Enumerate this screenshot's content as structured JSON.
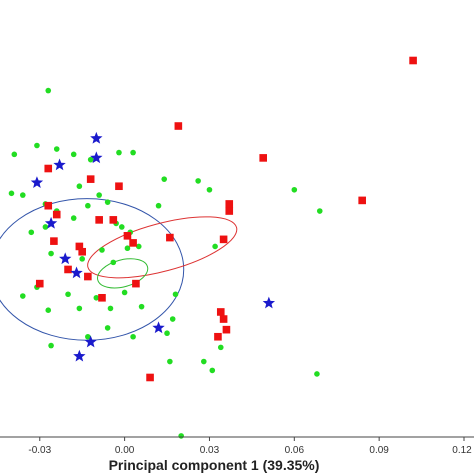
{
  "chart_data": {
    "type": "scatter",
    "xlabel": "Principal component 1 (39.35%)",
    "ylabel": "",
    "xlim": [
      -0.043,
      0.12
    ],
    "ylim": [
      -0.12,
      0.12
    ],
    "grid": false,
    "x_ticks": [
      "-0.03",
      "0.00",
      "0.03",
      "0.06",
      "0.09",
      "0.12"
    ],
    "x_tick_values": [
      -0.03,
      0.0,
      0.03,
      0.06,
      0.09,
      0.12
    ],
    "colors": {
      "green": "#22dd22",
      "red": "#ee1111",
      "blue": "#1a1acc",
      "blue_ellipse": "#3355aa",
      "red_ellipse": "#dd3333",
      "green_ellipse": "#33bb33",
      "axis": "#444444"
    },
    "series": [
      {
        "marker": "circle",
        "color": "green",
        "points": [
          [
            -0.027,
            0.079
          ],
          [
            -0.039,
            0.043
          ],
          [
            -0.031,
            0.048
          ],
          [
            -0.024,
            0.046
          ],
          [
            -0.018,
            0.043
          ],
          [
            -0.012,
            0.04
          ],
          [
            -0.002,
            0.044
          ],
          [
            0.003,
            0.044
          ],
          [
            -0.04,
            0.021
          ],
          [
            -0.036,
            0.02
          ],
          [
            -0.028,
            0.015
          ],
          [
            -0.024,
            0.011
          ],
          [
            -0.018,
            0.007
          ],
          [
            -0.013,
            0.014
          ],
          [
            -0.009,
            0.02
          ],
          [
            -0.006,
            0.016
          ],
          [
            -0.028,
            0.002
          ],
          [
            -0.033,
            -0.001
          ],
          [
            -0.026,
            -0.013
          ],
          [
            -0.021,
            -0.016
          ],
          [
            -0.015,
            -0.016
          ],
          [
            -0.008,
            -0.011
          ],
          [
            -0.004,
            -0.018
          ],
          [
            0.001,
            -0.01
          ],
          [
            0.005,
            -0.009
          ],
          [
            -0.031,
            -0.032
          ],
          [
            -0.036,
            -0.037
          ],
          [
            -0.027,
            -0.045
          ],
          [
            -0.02,
            -0.036
          ],
          [
            -0.016,
            -0.044
          ],
          [
            -0.01,
            -0.038
          ],
          [
            -0.005,
            -0.044
          ],
          [
            0.0,
            -0.035
          ],
          [
            0.006,
            -0.043
          ],
          [
            -0.026,
            -0.065
          ],
          [
            -0.013,
            -0.06
          ],
          [
            -0.006,
            -0.055
          ],
          [
            0.003,
            -0.06
          ],
          [
            0.017,
            -0.05
          ],
          [
            0.018,
            -0.036
          ],
          [
            0.015,
            -0.058
          ],
          [
            0.016,
            -0.074
          ],
          [
            0.014,
            0.029
          ],
          [
            0.026,
            0.028
          ],
          [
            0.03,
            0.023
          ],
          [
            -0.001,
            0.002
          ],
          [
            0.002,
            -0.001
          ],
          [
            -0.003,
            0.004
          ],
          [
            0.034,
            -0.066
          ],
          [
            0.028,
            -0.074
          ],
          [
            0.031,
            -0.079
          ],
          [
            0.06,
            0.023
          ],
          [
            0.069,
            0.011
          ],
          [
            0.068,
            -0.081
          ],
          [
            0.032,
            -0.009
          ],
          [
            0.012,
            0.014
          ],
          [
            -0.016,
            0.025
          ],
          [
            0.02,
            -0.116
          ]
        ]
      },
      {
        "marker": "square",
        "color": "red",
        "points": [
          [
            0.102,
            0.096
          ],
          [
            0.019,
            0.059
          ],
          [
            0.049,
            0.041
          ],
          [
            -0.027,
            0.035
          ],
          [
            -0.012,
            0.029
          ],
          [
            -0.002,
            0.025
          ],
          [
            0.037,
            0.015
          ],
          [
            0.037,
            0.011
          ],
          [
            0.084,
            0.017
          ],
          [
            -0.027,
            0.014
          ],
          [
            -0.024,
            0.009
          ],
          [
            -0.009,
            0.006
          ],
          [
            -0.004,
            0.006
          ],
          [
            0.001,
            -0.003
          ],
          [
            0.003,
            -0.007
          ],
          [
            0.016,
            -0.004
          ],
          [
            0.035,
            -0.005
          ],
          [
            -0.025,
            -0.006
          ],
          [
            -0.016,
            -0.009
          ],
          [
            -0.02,
            -0.022
          ],
          [
            -0.013,
            -0.026
          ],
          [
            -0.008,
            -0.038
          ],
          [
            0.004,
            -0.03
          ],
          [
            0.034,
            -0.046
          ],
          [
            0.035,
            -0.05
          ],
          [
            0.036,
            -0.056
          ],
          [
            0.033,
            -0.06
          ],
          [
            0.009,
            -0.083
          ],
          [
            -0.015,
            -0.012
          ],
          [
            -0.03,
            -0.03
          ]
        ]
      },
      {
        "marker": "star",
        "color": "blue",
        "points": [
          [
            -0.01,
            0.052
          ],
          [
            -0.01,
            0.041
          ],
          [
            -0.023,
            0.037
          ],
          [
            -0.031,
            0.027
          ],
          [
            -0.026,
            0.004
          ],
          [
            -0.021,
            -0.016
          ],
          [
            -0.017,
            -0.024
          ],
          [
            0.051,
            -0.041
          ],
          [
            0.012,
            -0.055
          ],
          [
            -0.012,
            -0.063
          ],
          [
            -0.016,
            -0.071
          ]
        ]
      }
    ],
    "ellipses": [
      {
        "color": "blue_ellipse",
        "center": [
          -0.0133,
          -0.022
        ],
        "radii": [
          0.0342,
          0.04
        ],
        "rotation": 0
      },
      {
        "color": "red_ellipse",
        "center": [
          0.0133,
          -0.0095
        ],
        "radii": [
          0.0272,
          0.0135
        ],
        "rotation": -15
      },
      {
        "color": "green_ellipse",
        "center": [
          -0.0007,
          -0.0242
        ],
        "radii": [
          0.0091,
          0.0076
        ],
        "rotation": -15
      }
    ]
  }
}
